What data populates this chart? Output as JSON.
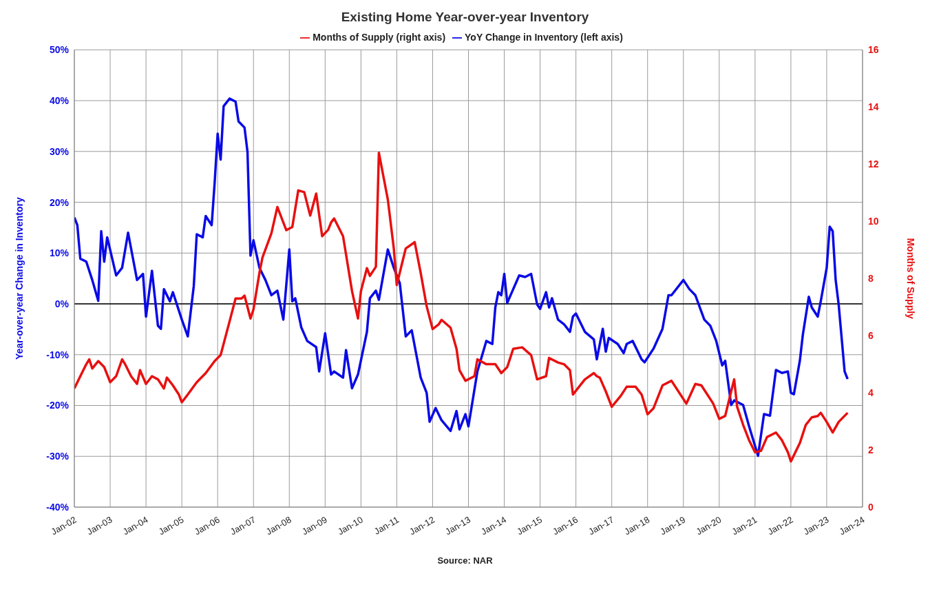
{
  "chart_data": {
    "type": "line",
    "title": "Existing Home Year-over-year Inventory",
    "ylabel": "Year-over-year Change in Inventory",
    "y2label": "Months of Supply",
    "annotations": [
      "Source: NAR"
    ],
    "legend": "top",
    "grid": true,
    "xlim": [
      "2002-01",
      "2024-01"
    ],
    "xticks": [
      {
        "value": "2002-01",
        "label": "Jan-02"
      },
      {
        "value": "2003-01",
        "label": "Jan-03"
      },
      {
        "value": "2004-01",
        "label": "Jan-04"
      },
      {
        "value": "2005-01",
        "label": "Jan-05"
      },
      {
        "value": "2006-01",
        "label": "Jan-06"
      },
      {
        "value": "2007-01",
        "label": "Jan-07"
      },
      {
        "value": "2008-01",
        "label": "Jan-08"
      },
      {
        "value": "2009-01",
        "label": "Jan-09"
      },
      {
        "value": "2010-01",
        "label": "Jan-10"
      },
      {
        "value": "2011-01",
        "label": "Jan-11"
      },
      {
        "value": "2012-01",
        "label": "Jan-12"
      },
      {
        "value": "2013-01",
        "label": "Jan-13"
      },
      {
        "value": "2014-01",
        "label": "Jan-14"
      },
      {
        "value": "2015-01",
        "label": "Jan-15"
      },
      {
        "value": "2016-01",
        "label": "Jan-16"
      },
      {
        "value": "2017-01",
        "label": "Jan-17"
      },
      {
        "value": "2018-01",
        "label": "Jan-18"
      },
      {
        "value": "2019-01",
        "label": "Jan-19"
      },
      {
        "value": "2020-01",
        "label": "Jan-20"
      },
      {
        "value": "2021-01",
        "label": "Jan-21"
      },
      {
        "value": "2022-01",
        "label": "Jan-22"
      },
      {
        "value": "2023-01",
        "label": "Jan-23"
      },
      {
        "value": "2024-01",
        "label": "Jan-24"
      }
    ],
    "ylim": [
      -40,
      50
    ],
    "yticks": [
      {
        "value": -40,
        "label": "-40%"
      },
      {
        "value": -30,
        "label": "-30%"
      },
      {
        "value": -20,
        "label": "-20%"
      },
      {
        "value": -10,
        "label": "-10%"
      },
      {
        "value": 0,
        "label": "0%"
      },
      {
        "value": 10,
        "label": "10%"
      },
      {
        "value": 20,
        "label": "20%"
      },
      {
        "value": 30,
        "label": "30%"
      },
      {
        "value": 40,
        "label": "40%"
      },
      {
        "value": 50,
        "label": "50%"
      }
    ],
    "y2lim": [
      0,
      16
    ],
    "y2ticks": [
      0,
      2,
      4,
      6,
      8,
      10,
      12,
      14,
      16
    ],
    "ref_lines": [
      {
        "axis": "y",
        "value": 0,
        "color": "#000000"
      }
    ],
    "series": [
      {
        "name": "YoY Change in Inventory (left axis)",
        "color": "#0a0ae6",
        "axis": "y",
        "x": [
          "2002-01",
          "2002-02",
          "2002-03",
          "2002-05",
          "2002-07",
          "2002-09",
          "2002-10",
          "2002-11",
          "2002-12",
          "2003-03",
          "2003-05",
          "2003-07",
          "2003-10",
          "2003-12",
          "2004-01",
          "2004-03",
          "2004-05",
          "2004-06",
          "2004-07",
          "2004-09",
          "2004-10",
          "2005-01",
          "2005-03",
          "2005-05",
          "2005-06",
          "2005-08",
          "2005-09",
          "2005-11",
          "2005-12",
          "2006-01",
          "2006-02",
          "2006-03",
          "2006-05",
          "2006-07",
          "2006-08",
          "2006-10",
          "2006-11",
          "2006-12",
          "2007-01",
          "2007-03",
          "2007-05",
          "2007-07",
          "2007-09",
          "2007-11",
          "2008-01",
          "2008-02",
          "2008-03",
          "2008-05",
          "2008-07",
          "2008-10",
          "2008-11",
          "2009-01",
          "2009-03",
          "2009-04",
          "2009-07",
          "2009-08",
          "2009-10",
          "2009-12",
          "2010-03",
          "2010-04",
          "2010-06",
          "2010-07",
          "2010-10",
          "2010-12",
          "2011-02",
          "2011-04",
          "2011-06",
          "2011-09",
          "2011-11",
          "2011-12",
          "2012-02",
          "2012-04",
          "2012-07",
          "2012-09",
          "2012-10",
          "2012-12",
          "2013-01",
          "2013-04",
          "2013-07",
          "2013-09",
          "2013-10",
          "2013-11",
          "2013-12",
          "2014-01",
          "2014-02",
          "2014-04",
          "2014-06",
          "2014-08",
          "2014-10",
          "2014-12",
          "2015-01",
          "2015-03",
          "2015-04",
          "2015-05",
          "2015-07",
          "2015-09",
          "2015-11",
          "2015-12",
          "2016-01",
          "2016-04",
          "2016-07",
          "2016-08",
          "2016-10",
          "2016-11",
          "2016-12",
          "2017-03",
          "2017-05",
          "2017-06",
          "2017-08",
          "2017-11",
          "2017-12",
          "2018-03",
          "2018-06",
          "2018-08",
          "2018-09",
          "2019-01",
          "2019-03",
          "2019-05",
          "2019-08",
          "2019-10",
          "2019-12",
          "2020-02",
          "2020-03",
          "2020-05",
          "2020-06",
          "2020-09",
          "2020-11",
          "2021-02",
          "2021-04",
          "2021-06",
          "2021-08",
          "2021-10",
          "2021-12",
          "2022-01",
          "2022-02",
          "2022-04",
          "2022-05",
          "2022-07",
          "2022-08",
          "2022-10",
          "2022-11",
          "2023-01",
          "2023-02",
          "2023-03",
          "2023-04",
          "2023-05",
          "2023-07",
          "2023-08"
        ],
        "values": [
          17,
          15.5,
          8.9,
          8.3,
          4.7,
          0.6,
          14.3,
          8.3,
          13.1,
          5.6,
          7.1,
          14,
          4.7,
          5.9,
          -2.5,
          6.5,
          -4.3,
          -4.9,
          2.9,
          0.5,
          2.3,
          -3.1,
          -6.4,
          3.5,
          13.7,
          13.1,
          17.3,
          15.5,
          23.9,
          33.5,
          28.4,
          38.9,
          40.4,
          39.8,
          35.9,
          34.7,
          29.9,
          9.5,
          12.5,
          7.1,
          4.7,
          1.7,
          2.6,
          -3.1,
          10.7,
          0.5,
          1.1,
          -4.6,
          -7.3,
          -8.5,
          -13.3,
          -5.8,
          -13.9,
          -13.3,
          -14.5,
          -9.1,
          -16.6,
          -13.9,
          -5.5,
          1.1,
          2.6,
          0.8,
          10.7,
          7.1,
          4.1,
          -6.4,
          -5.2,
          -14.5,
          -17.5,
          -23.2,
          -20.5,
          -22.9,
          -25,
          -21.1,
          -24.7,
          -21.7,
          -24.1,
          -13.3,
          -7.3,
          -7.9,
          -0.7,
          2.3,
          1.7,
          5.9,
          0.2,
          2.9,
          5.6,
          5.3,
          5.9,
          -0.1,
          -1,
          2.3,
          -0.7,
          1.1,
          -3.1,
          -4,
          -5.5,
          -2.5,
          -1.9,
          -5.5,
          -7,
          -10.9,
          -4.9,
          -9.4,
          -6.7,
          -7.9,
          -9.7,
          -7.9,
          -7.3,
          -10.9,
          -11.5,
          -8.8,
          -4.9,
          1.7,
          1.7,
          4.7,
          2.9,
          1.7,
          -3.1,
          -4.3,
          -7.3,
          -12.1,
          -11.2,
          -19.9,
          -19,
          -19.9,
          -24.1,
          -29.9,
          -21.7,
          -22,
          -13,
          -13.6,
          -13.3,
          -17.5,
          -17.8,
          -11.2,
          -6.1,
          1.4,
          -0.7,
          -2.5,
          0.5,
          7.1,
          15.2,
          14.3,
          4.7,
          -0.1,
          -13.3,
          -14.8
        ]
      },
      {
        "name": "Months of Supply (right axis)",
        "color": "#e81010",
        "axis": "y2",
        "x": [
          "2002-01",
          "2002-03",
          "2002-05",
          "2002-06",
          "2002-07",
          "2002-09",
          "2002-11",
          "2003-01",
          "2003-03",
          "2003-05",
          "2003-06",
          "2003-08",
          "2003-10",
          "2003-11",
          "2004-01",
          "2004-03",
          "2004-05",
          "2004-07",
          "2004-08",
          "2004-10",
          "2004-12",
          "2005-01",
          "2005-03",
          "2005-06",
          "2005-09",
          "2005-12",
          "2006-02",
          "2006-05",
          "2006-07",
          "2006-09",
          "2006-10",
          "2006-12",
          "2007-01",
          "2007-03",
          "2007-04",
          "2007-07",
          "2007-09",
          "2007-12",
          "2008-02",
          "2008-04",
          "2008-06",
          "2008-08",
          "2008-10",
          "2008-12",
          "2009-02",
          "2009-03",
          "2009-04",
          "2009-07",
          "2009-08",
          "2009-10",
          "2009-12",
          "2010-01",
          "2010-03",
          "2010-04",
          "2010-06",
          "2010-07",
          "2010-10",
          "2010-12",
          "2011-01",
          "2011-03",
          "2011-04",
          "2011-07",
          "2011-09",
          "2011-11",
          "2012-01",
          "2012-03",
          "2012-04",
          "2012-07",
          "2012-09",
          "2012-10",
          "2012-12",
          "2013-03",
          "2013-04",
          "2013-07",
          "2013-10",
          "2013-12",
          "2014-02",
          "2014-04",
          "2014-07",
          "2014-10",
          "2014-12",
          "2015-03",
          "2015-04",
          "2015-07",
          "2015-09",
          "2015-11",
          "2015-12",
          "2016-04",
          "2016-07",
          "2016-08",
          "2016-09",
          "2016-11",
          "2017-01",
          "2017-04",
          "2017-06",
          "2017-09",
          "2017-11",
          "2018-01",
          "2018-03",
          "2018-06",
          "2018-09",
          "2018-12",
          "2019-02",
          "2019-05",
          "2019-07",
          "2019-09",
          "2019-11",
          "2020-01",
          "2020-03",
          "2020-05",
          "2020-06",
          "2020-07",
          "2020-09",
          "2020-11",
          "2021-01",
          "2021-03",
          "2021-05",
          "2021-08",
          "2021-10",
          "2021-12",
          "2022-01",
          "2022-04",
          "2022-06",
          "2022-08",
          "2022-10",
          "2022-11",
          "2023-01",
          "2023-03",
          "2023-05",
          "2023-08"
        ],
        "values": [
          4.15,
          4.58,
          5.0,
          5.17,
          4.85,
          5.11,
          4.9,
          4.37,
          4.58,
          5.17,
          5.0,
          4.58,
          4.31,
          4.79,
          4.31,
          4.58,
          4.47,
          4.15,
          4.53,
          4.26,
          3.94,
          3.67,
          3.94,
          4.37,
          4.69,
          5.11,
          5.32,
          6.5,
          7.3,
          7.3,
          7.4,
          6.6,
          6.92,
          8.2,
          8.73,
          9.58,
          10.5,
          9.69,
          9.8,
          11.08,
          11.02,
          10.2,
          10.97,
          9.48,
          9.7,
          9.96,
          10.1,
          9.48,
          8.84,
          7.56,
          6.6,
          7.56,
          8.36,
          8.09,
          8.41,
          12.4,
          10.76,
          9.05,
          7.77,
          8.63,
          9.05,
          9.27,
          8.2,
          7.03,
          6.23,
          6.39,
          6.55,
          6.28,
          5.54,
          4.79,
          4.42,
          4.58,
          5.17,
          5.0,
          5.0,
          4.69,
          4.9,
          5.54,
          5.59,
          5.32,
          4.47,
          4.58,
          5.22,
          5.06,
          5.0,
          4.79,
          3.94,
          4.47,
          4.69,
          4.58,
          4.53,
          4.05,
          3.51,
          3.89,
          4.21,
          4.21,
          3.94,
          3.25,
          3.46,
          4.26,
          4.42,
          3.94,
          3.62,
          4.31,
          4.26,
          3.94,
          3.62,
          3.09,
          3.19,
          4.05,
          4.47,
          3.51,
          2.88,
          2.34,
          1.92,
          1.97,
          2.45,
          2.61,
          2.34,
          1.92,
          1.6,
          2.24,
          2.88,
          3.14,
          3.19,
          3.3,
          2.98,
          2.61,
          2.98,
          3.3
        ]
      }
    ]
  }
}
